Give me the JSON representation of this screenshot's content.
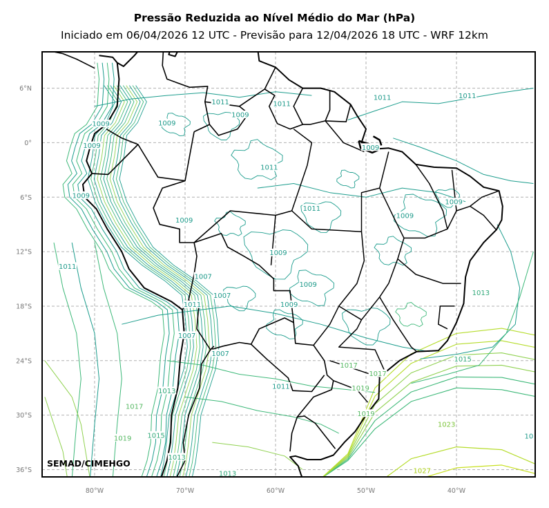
{
  "header": {
    "title": "Pressão Reduzida ao Nível Médio do Mar (hPa)",
    "subtitle": "Iniciado em 06/04/2026 12 UTC - Previsão para 12/04/2026 18 UTC - WRF 12km"
  },
  "map": {
    "projection": "PlateCarree",
    "extent": {
      "lon": [
        -85.8,
        -31.3
      ],
      "lat": [
        -36.8,
        10.0
      ]
    },
    "grid": true,
    "credit": "SEMAD/CIMEHGO",
    "lat_ticks": [
      "6°N",
      "0°",
      "6°S",
      "12°S",
      "18°S",
      "24°S",
      "30°S",
      "36°S"
    ],
    "lon_ticks": [
      "80°W",
      "70°W",
      "60°W",
      "50°W",
      "40°W"
    ],
    "colors": {
      "low": "#1a9c8c",
      "mid": "#3cb878",
      "high": "#8fd14f",
      "highest": "#b5dc2a",
      "border": "#000000",
      "grid": "#b0b0b0"
    },
    "contour_labels": [
      {
        "text": "1011",
        "lon": -48.2,
        "lat": 4.9
      },
      {
        "text": "1011",
        "lon": -38.8,
        "lat": 5.1
      },
      {
        "text": "1009",
        "lon": -79.3,
        "lat": 2.0
      },
      {
        "text": "1009",
        "lon": -72.0,
        "lat": 2.1
      },
      {
        "text": "1009",
        "lon": -63.9,
        "lat": 3.0
      },
      {
        "text": "1011",
        "lon": -59.3,
        "lat": 4.2
      },
      {
        "text": "1011",
        "lon": -66.1,
        "lat": 4.4
      },
      {
        "text": "1009",
        "lon": -80.3,
        "lat": -0.4
      },
      {
        "text": "1009",
        "lon": -49.5,
        "lat": -0.6
      },
      {
        "text": "1011",
        "lon": -60.7,
        "lat": -2.8
      },
      {
        "text": "1009",
        "lon": -81.5,
        "lat": -5.9
      },
      {
        "text": "1011",
        "lon": -56.0,
        "lat": -7.3
      },
      {
        "text": "1009",
        "lon": -40.3,
        "lat": -6.6
      },
      {
        "text": "1009",
        "lon": -45.7,
        "lat": -8.1
      },
      {
        "text": "1009",
        "lon": -70.1,
        "lat": -8.6
      },
      {
        "text": "1011",
        "lon": -83.0,
        "lat": -13.7
      },
      {
        "text": "1009",
        "lon": -59.7,
        "lat": -12.2
      },
      {
        "text": "1007",
        "lon": -68.0,
        "lat": -14.8
      },
      {
        "text": "1009",
        "lon": -56.4,
        "lat": -15.7
      },
      {
        "text": "1013",
        "lon": -37.3,
        "lat": -16.6
      },
      {
        "text": "1011",
        "lon": -69.2,
        "lat": -17.9
      },
      {
        "text": "1007",
        "lon": -65.9,
        "lat": -16.9
      },
      {
        "text": "1009",
        "lon": -58.5,
        "lat": -17.9
      },
      {
        "text": "1007",
        "lon": -69.8,
        "lat": -21.3
      },
      {
        "text": "1007",
        "lon": -66.1,
        "lat": -23.3
      },
      {
        "text": "1015",
        "lon": -39.3,
        "lat": -23.9
      },
      {
        "text": "1017",
        "lon": -51.9,
        "lat": -24.6
      },
      {
        "text": "1017",
        "lon": -48.7,
        "lat": -25.5
      },
      {
        "text": "1011",
        "lon": -59.4,
        "lat": -26.9
      },
      {
        "text": "1019",
        "lon": -50.6,
        "lat": -27.1
      },
      {
        "text": "1013",
        "lon": -72.0,
        "lat": -27.4
      },
      {
        "text": "1017",
        "lon": -75.6,
        "lat": -29.1
      },
      {
        "text": "1019",
        "lon": -50.0,
        "lat": -29.9
      },
      {
        "text": "1023",
        "lon": -41.1,
        "lat": -31.1
      },
      {
        "text": "1019",
        "lon": -76.9,
        "lat": -32.6
      },
      {
        "text": "1015",
        "lon": -73.2,
        "lat": -32.3
      },
      {
        "text": "1013",
        "lon": -70.9,
        "lat": -34.7
      },
      {
        "text": "1027",
        "lon": -43.8,
        "lat": -36.2
      },
      {
        "text": "1013",
        "lon": -65.3,
        "lat": -36.5
      },
      {
        "text": "10",
        "lon": -32.0,
        "lat": -32.4
      }
    ]
  }
}
